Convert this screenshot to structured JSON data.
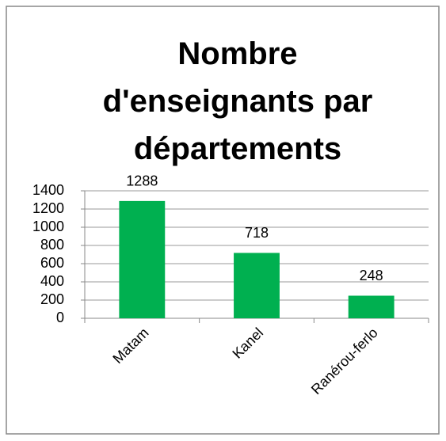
{
  "chart_data": {
    "type": "bar",
    "title": "Nombre d'enseignants par départements",
    "categories": [
      "Matam",
      "Kanel",
      "Ranérou-ferlo"
    ],
    "values": [
      1288,
      718,
      248
    ],
    "color": "#00b050",
    "ylim": [
      0,
      1400
    ],
    "yticks": [
      0,
      200,
      400,
      600,
      800,
      1000,
      1200,
      1400
    ],
    "grid": true
  }
}
